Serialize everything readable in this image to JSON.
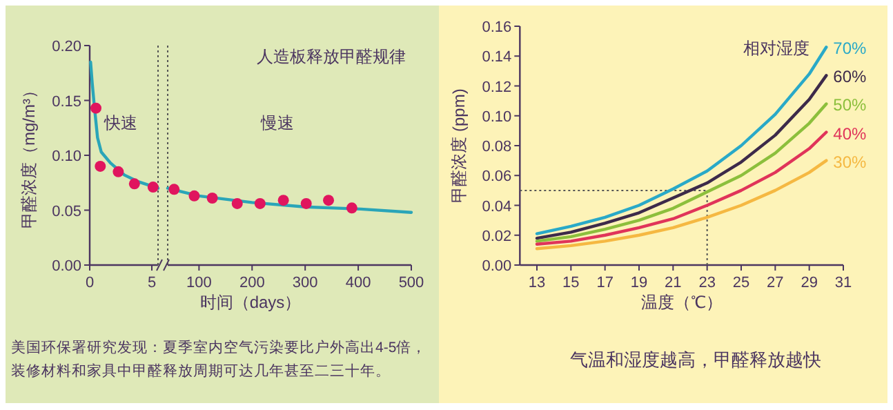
{
  "chart_data": [
    {
      "type": "scatter",
      "ylabel": "甲醛浓度（mg/m³）",
      "xlim": [
        0,
        5.5
      ],
      "xticks": [
        0,
        5
      ],
      "ylim": [
        0,
        0.2
      ],
      "yticks": [
        {
          "value": 0,
          "label": "0.00"
        },
        {
          "value": 0.05,
          "label": "0.05"
        },
        {
          "value": 0.1,
          "label": "0.10"
        },
        {
          "value": 0.15,
          "label": "0.15"
        },
        {
          "value": 0.2,
          "label": "0.20"
        }
      ],
      "ref_lines": [
        {
          "axis": "x",
          "value": 5.5,
          "color": "#555555",
          "line_style": "dotted"
        }
      ],
      "annotations": [
        "快速",
        "美国环保署研究发现：夏季室内空气污染要比户外高出4-5倍，",
        "装修材料和家具中甲醛释放周期可达几年甚至二三十年。"
      ],
      "series": [
        {
          "type": "line",
          "color": "#2aa5b8",
          "x": [
            0.07,
            0.2,
            0.37,
            0.63,
            0.93,
            1.67,
            2.8,
            3.9,
            5.5
          ],
          "values": [
            0.185,
            0.166,
            0.145,
            0.116,
            0.103,
            0.093,
            0.082,
            0.076,
            0.07
          ]
        },
        {
          "marker": "circle",
          "color": "#e0155e",
          "x": [
            0.5,
            0.85,
            2.3,
            3.6,
            5.1
          ],
          "values": [
            0.143,
            0.09,
            0.085,
            0.074,
            0.071
          ]
        }
      ]
    },
    {
      "type": "scatter",
      "title": "人造板释放甲醛规律",
      "xlabel": "时间（days）",
      "xlim": [
        41,
        500
      ],
      "xticks": [
        100,
        200,
        300,
        400,
        500
      ],
      "ylim": [
        0,
        0.2
      ],
      "tick_labels": "x",
      "ref_lines": [
        {
          "axis": "x",
          "value": 41,
          "color": "#555555",
          "line_style": "dotted"
        }
      ],
      "annotations": [
        "慢速"
      ],
      "series": [
        {
          "type": "line",
          "color": "#2aa5b8",
          "x": [
            41,
            100,
            200,
            300,
            405,
            500
          ],
          "values": [
            0.07,
            0.063,
            0.057,
            0.053,
            0.051,
            0.048
          ]
        },
        {
          "marker": "circle",
          "color": "#e0155e",
          "x": [
            53,
            91,
            125,
            172,
            215,
            259,
            302,
            344,
            388
          ],
          "values": [
            0.069,
            0.063,
            0.061,
            0.056,
            0.056,
            0.059,
            0.056,
            0.059,
            0.052
          ]
        }
      ]
    },
    {
      "type": "line",
      "xlabel": "温度（℃）",
      "ylabel": "甲醛浓度 (ppm)",
      "legend_title": "相对湿度",
      "xlim": [
        12,
        31
      ],
      "xticks": [
        13,
        15,
        17,
        19,
        21,
        23,
        25,
        27,
        29,
        31
      ],
      "ylim": [
        0,
        0.16
      ],
      "yticks": [
        {
          "value": 0,
          "label": "0.00"
        },
        {
          "value": 0.02,
          "label": "0.02"
        },
        {
          "value": 0.04,
          "label": "0.04"
        },
        {
          "value": 0.06,
          "label": "0.06"
        },
        {
          "value": 0.08,
          "label": "0.08"
        },
        {
          "value": 0.1,
          "label": "0.10"
        },
        {
          "value": 0.12,
          "label": "0.12"
        },
        {
          "value": 0.14,
          "label": "0.14"
        },
        {
          "value": 0.16,
          "label": "0.16"
        }
      ],
      "ref_lines": [
        {
          "axis": "y",
          "value": 0.05,
          "color": "#555555",
          "line_style": "dotted"
        },
        {
          "axis": "x",
          "value": 23,
          "color": "#555555",
          "line_style": "dotted"
        }
      ],
      "annotations": [
        "气温和湿度越高，甲醛释放越快"
      ],
      "x": [
        13,
        15,
        17,
        19,
        21,
        23,
        25,
        27,
        29,
        30
      ],
      "series": [
        {
          "name": "70%",
          "color": "#29a9c8",
          "values": [
            0.021,
            0.026,
            0.032,
            0.04,
            0.051,
            0.063,
            0.08,
            0.101,
            0.128,
            0.146
          ]
        },
        {
          "name": "60%",
          "color": "#3d2a4a",
          "values": [
            0.018,
            0.022,
            0.028,
            0.035,
            0.045,
            0.055,
            0.069,
            0.087,
            0.111,
            0.127
          ]
        },
        {
          "name": "50%",
          "color": "#8cbf3c",
          "values": [
            0.016,
            0.019,
            0.024,
            0.03,
            0.038,
            0.049,
            0.06,
            0.075,
            0.095,
            0.108
          ]
        },
        {
          "name": "40%",
          "color": "#e0345a",
          "values": [
            0.014,
            0.016,
            0.02,
            0.025,
            0.031,
            0.04,
            0.05,
            0.062,
            0.078,
            0.089
          ]
        },
        {
          "name": "30%",
          "color": "#f5b842",
          "values": [
            0.011,
            0.013,
            0.016,
            0.02,
            0.025,
            0.032,
            0.04,
            0.05,
            0.062,
            0.07
          ]
        }
      ]
    }
  ]
}
